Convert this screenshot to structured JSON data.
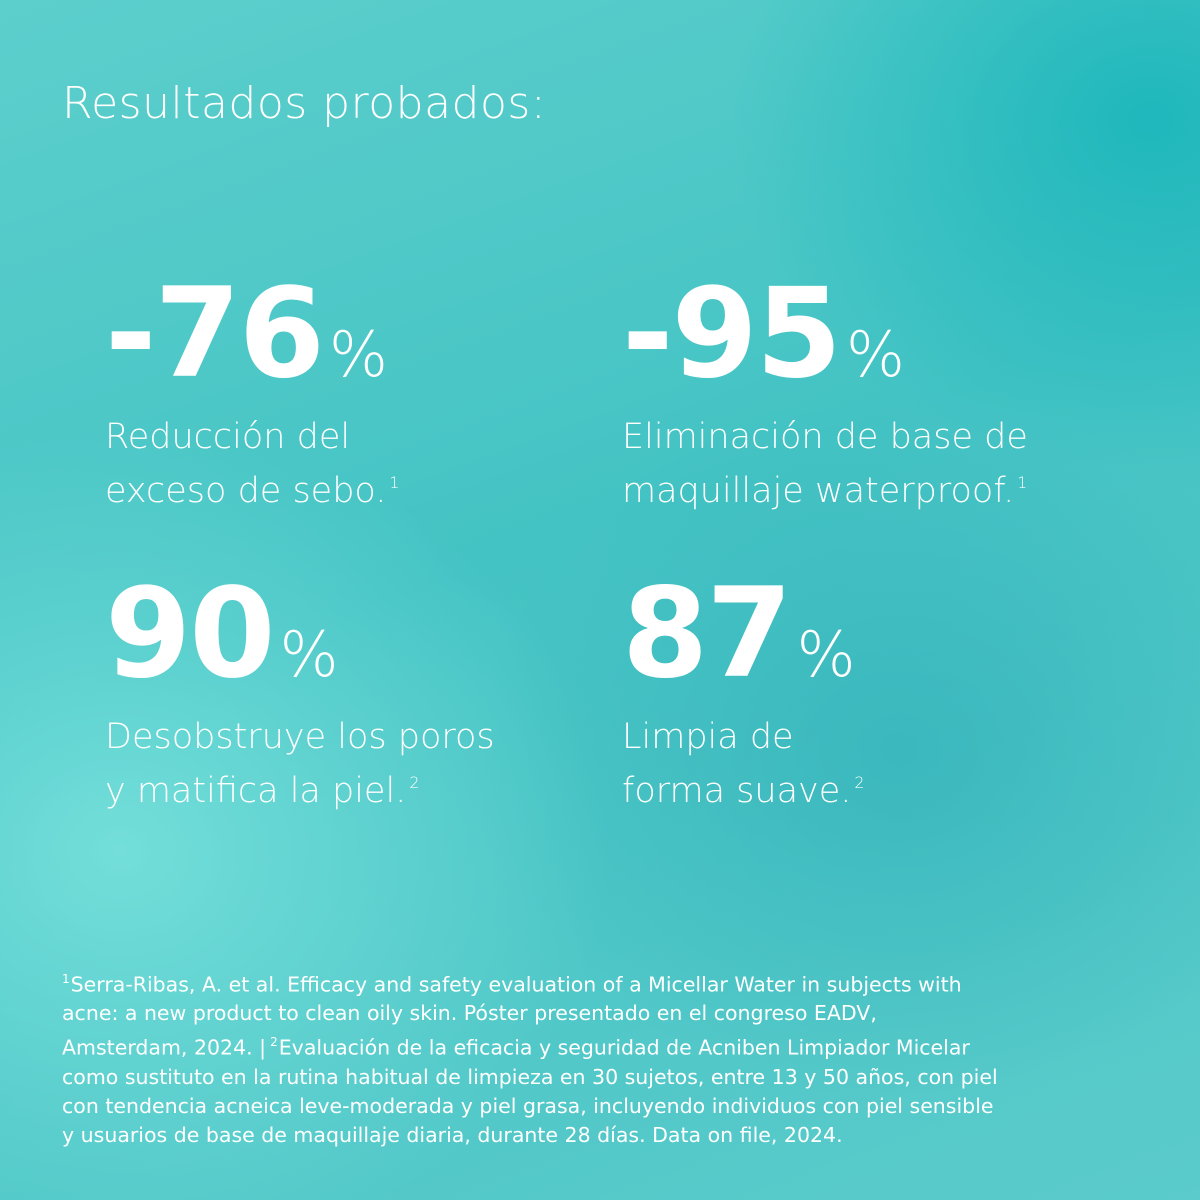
{
  "title": "Resultados probados:",
  "stats": [
    {
      "number": "-76",
      "unit": "%",
      "lines": [
        "Reducción del",
        "exceso de sebo."
      ],
      "note": "1"
    },
    {
      "number": "-95",
      "unit": "%",
      "lines": [
        "Eliminación de base de",
        "maquillaje waterproof."
      ],
      "note": "1"
    },
    {
      "number": "90",
      "unit": "%",
      "lines": [
        "Desobstruye los poros",
        "y matifica la piel."
      ],
      "note": "2"
    },
    {
      "number": "87",
      "unit": "%",
      "lines": [
        "Limpia de",
        "forma suave."
      ],
      "note": "2"
    }
  ],
  "footnote": {
    "lines": [
      [
        {
          "sup": "1"
        },
        {
          "text": "Serra-Ribas, A. et al. Efficacy and safety evaluation of a Micellar Water in subjects with"
        }
      ],
      [
        {
          "text": "acne: a new product to clean oily skin. Póster presentado en el congreso EADV,"
        }
      ],
      [
        {
          "text": "Amsterdam, 2024. |"
        },
        {
          "sup": "2"
        },
        {
          "text": "Evaluación de la eficacia y seguridad de Acniben Limpiador Micelar"
        }
      ],
      [
        {
          "text": "como sustituto en la rutina habitual de limpieza en 30 sujetos, entre 13 y 50 años, con piel"
        }
      ],
      [
        {
          "text": "con tendencia acneica leve-moderada y piel grasa, incluyendo individuos con piel sensible"
        }
      ],
      [
        {
          "text": "y usuarios de base de maquillaje diaria, durante 28 días. Data on file, 2024."
        }
      ]
    ]
  }
}
